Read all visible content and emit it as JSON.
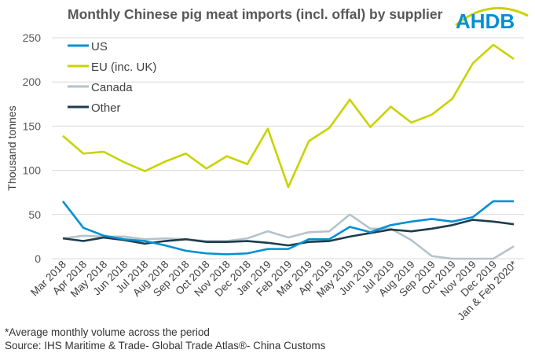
{
  "title": "Monthly Chinese pig meat imports (incl. offal) by supplier",
  "logo_text": "AHDB",
  "footnotes": [
    "*Average monthly volume across the period",
    "Source: IHS Maritime & Trade- Global Trade Atlas®- China Customs"
  ],
  "chart_data": {
    "type": "line",
    "title": "Monthly Chinese pig meat imports (incl. offal) by supplier",
    "ylabel": "Thousand tonnes",
    "xlabel": "",
    "ylim": [
      0,
      250
    ],
    "yticks": [
      0,
      50,
      100,
      150,
      200,
      250
    ],
    "grid": true,
    "legend": "top-left",
    "categories": [
      "Mar 2018",
      "Apr 2018",
      "May 2018",
      "Jun 2018",
      "Jul 2018",
      "Aug 2018",
      "Sep 2018",
      "Oct 2018",
      "Nov 2018",
      "Dec 2018",
      "Jan 2019",
      "Feb 2019",
      "Mar 2019",
      "Apr 2019",
      "May 2019",
      "Jun 2019",
      "Jul 2019",
      "Aug 2019",
      "Sep 2019",
      "Oct 2019",
      "Nov 2019",
      "Dec 2019",
      "Jan & Feb 2020*"
    ],
    "series": [
      {
        "name": "US",
        "color": "#0090d4",
        "values": [
          65,
          35,
          26,
          22,
          20,
          15,
          9,
          6,
          5,
          6,
          11,
          11,
          22,
          22,
          36,
          30,
          38,
          42,
          45,
          42,
          47,
          65,
          65
        ]
      },
      {
        "name": "EU (inc. UK)",
        "color": "#c8d400",
        "values": [
          139,
          119,
          121,
          109,
          99,
          110,
          119,
          102,
          116,
          107,
          147,
          81,
          133,
          148,
          180,
          149,
          172,
          154,
          163,
          181,
          221,
          242,
          226
        ]
      },
      {
        "name": "Canada",
        "color": "#b5c3ca",
        "values": [
          23,
          26,
          25,
          25,
          22,
          23,
          22,
          20,
          20,
          23,
          31,
          24,
          30,
          31,
          50,
          34,
          34,
          21,
          3,
          0,
          0,
          0,
          14
        ]
      },
      {
        "name": "Other",
        "color": "#1d3c4c",
        "values": [
          23,
          20,
          24,
          21,
          17,
          20,
          22,
          19,
          19,
          20,
          18,
          15,
          19,
          20,
          25,
          29,
          33,
          31,
          34,
          38,
          44,
          42,
          39
        ]
      }
    ]
  }
}
